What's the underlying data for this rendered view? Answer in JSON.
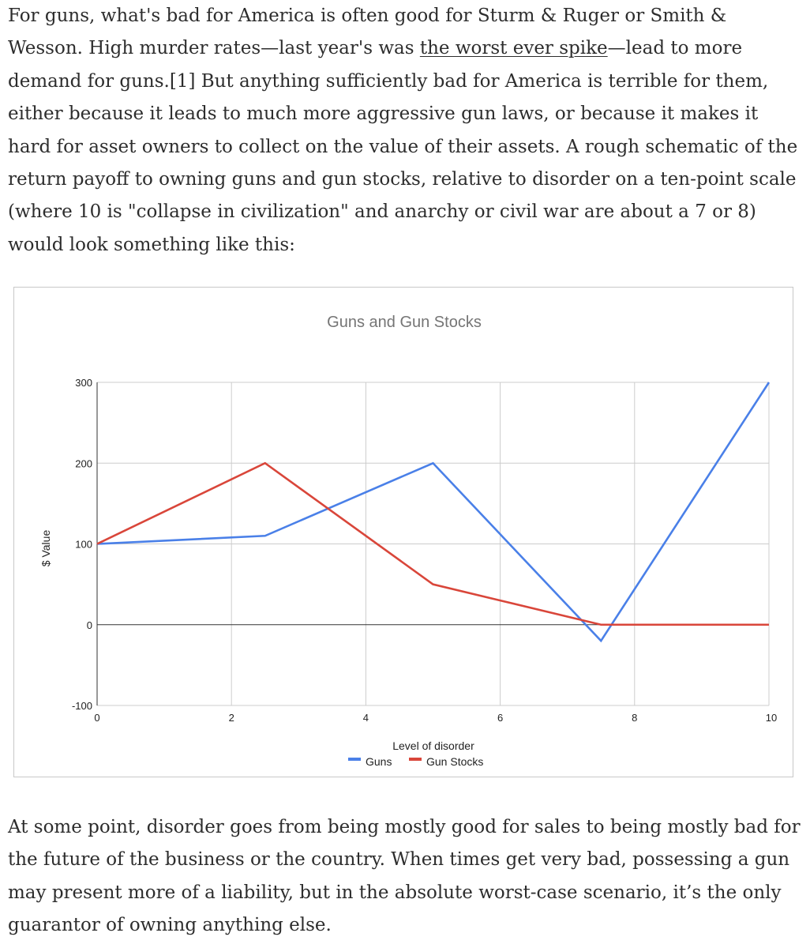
{
  "article": {
    "para1": {
      "before_link": "For guns, what's bad for America is often good for Sturm & Ruger or Smith & Wesson. High murder rates—last year's was ",
      "link_text": "the worst ever spike",
      "after_link": "—lead to more demand for guns.[1] But anything sufficiently bad for America is terrible for them, either because it leads to much more aggressive gun laws, or because it makes it hard for asset owners to collect on the value of their assets. A rough schematic of the return payoff to owning guns and gun stocks, relative to disorder on a ten-point scale (where 10 is \"collapse in civilization\" and anarchy or civil war are about a 7 or 8) would look something like this:"
    },
    "para2": "At some point, disorder goes from being mostly good for sales to being mostly bad for the future of the business or the country. When times get very bad, possessing a gun may present more of a liability, but in the absolute worst-case scenario, it’s the only guarantor of owning anything else."
  },
  "chart_data": {
    "type": "line",
    "title": "Guns and Gun Stocks",
    "xlabel": "Level of disorder",
    "ylabel": "$ Value",
    "xlim": [
      0,
      10
    ],
    "ylim": [
      -100,
      300
    ],
    "xticks": [
      "0",
      "2",
      "4",
      "6",
      "8",
      "10"
    ],
    "yticks": [
      "-100",
      "0",
      "100",
      "200",
      "300"
    ],
    "grid": true,
    "legend_position": "bottom",
    "series": [
      {
        "name": "Guns",
        "color": "#4a80e8",
        "x": [
          0,
          2.5,
          5,
          7.5,
          10
        ],
        "y": [
          100,
          110,
          200,
          -20,
          300
        ]
      },
      {
        "name": "Gun Stocks",
        "color": "#d9463a",
        "x": [
          0,
          2.5,
          5,
          7.5,
          10
        ],
        "y": [
          100,
          200,
          50,
          0,
          0
        ]
      }
    ]
  }
}
